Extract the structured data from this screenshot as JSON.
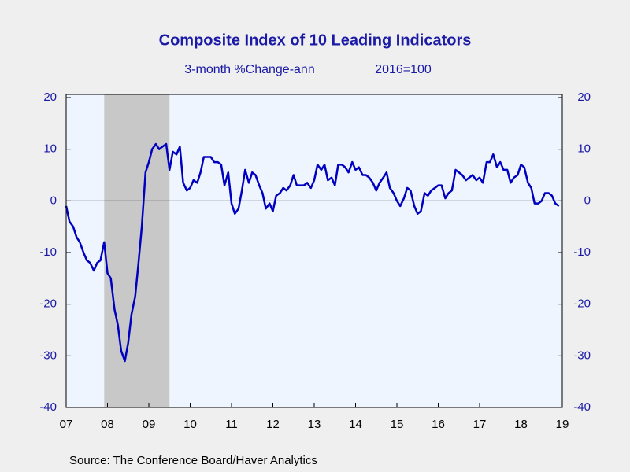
{
  "chart_data": {
    "type": "line",
    "title": "Composite Index of 10 Leading Indicators",
    "subtitle": [
      "3-month %Change-ann",
      "2016=100"
    ],
    "source": "Source:  The Conference Board/Haver Analytics",
    "x": [
      2007,
      2007.08,
      2007.17,
      2007.25,
      2007.33,
      2007.42,
      2007.5,
      2007.58,
      2007.67,
      2007.75,
      2007.83,
      2007.92,
      2008,
      2008.08,
      2008.17,
      2008.25,
      2008.33,
      2008.42,
      2008.5,
      2008.58,
      2008.67,
      2008.75,
      2008.83,
      2008.92,
      2009,
      2009.08,
      2009.17,
      2009.25,
      2009.33,
      2009.42,
      2009.5,
      2009.58,
      2009.67,
      2009.75,
      2009.83,
      2009.92,
      2010,
      2010.08,
      2010.17,
      2010.25,
      2010.33,
      2010.42,
      2010.5,
      2010.58,
      2010.67,
      2010.75,
      2010.83,
      2010.92,
      2011,
      2011.08,
      2011.17,
      2011.25,
      2011.33,
      2011.42,
      2011.5,
      2011.58,
      2011.67,
      2011.75,
      2011.83,
      2011.92,
      2012,
      2012.08,
      2012.17,
      2012.25,
      2012.33,
      2012.42,
      2012.5,
      2012.58,
      2012.67,
      2012.75,
      2012.83,
      2012.92,
      2013,
      2013.08,
      2013.17,
      2013.25,
      2013.33,
      2013.42,
      2013.5,
      2013.58,
      2013.67,
      2013.75,
      2013.83,
      2013.92,
      2014,
      2014.08,
      2014.17,
      2014.25,
      2014.33,
      2014.42,
      2014.5,
      2014.58,
      2014.67,
      2014.75,
      2014.83,
      2014.92,
      2015,
      2015.08,
      2015.17,
      2015.25,
      2015.33,
      2015.42,
      2015.5,
      2015.58,
      2015.67,
      2015.75,
      2015.83,
      2015.92,
      2016,
      2016.08,
      2016.17,
      2016.25,
      2016.33,
      2016.42,
      2016.5,
      2016.58,
      2016.67,
      2016.75,
      2016.83,
      2016.92,
      2017,
      2017.08,
      2017.17,
      2017.25,
      2017.33,
      2017.42,
      2017.5,
      2017.58,
      2017.67,
      2017.75,
      2017.83,
      2017.92,
      2018,
      2018.08,
      2018.17,
      2018.25,
      2018.33,
      2018.42,
      2018.5,
      2018.58,
      2018.67,
      2018.75,
      2018.83,
      2018.92
    ],
    "series": [
      {
        "color": "#0000c0",
        "values": [
          -1,
          -4,
          -5,
          -7,
          -8,
          -10,
          -11.5,
          -12,
          -13.5,
          -12,
          -11.5,
          -8,
          -14,
          -15,
          -21,
          -24,
          -29,
          -31,
          -27.5,
          -22,
          -18.5,
          -12,
          -5,
          5.5,
          7.5,
          10,
          11,
          10,
          10.5,
          11,
          6,
          9.5,
          9,
          10.5,
          3.5,
          2,
          2.5,
          4,
          3.5,
          5.5,
          8.5,
          8.5,
          8.5,
          7.5,
          7.5,
          7,
          3,
          5.5,
          -0.5,
          -2.5,
          -1.5,
          2,
          6,
          3.5,
          5.5,
          5,
          3,
          1.5,
          -1.5,
          -0.5,
          -2,
          1,
          1.5,
          2.5,
          2,
          3,
          5,
          3,
          3,
          3,
          3.5,
          2.5,
          4,
          7,
          6,
          7,
          4,
          4.5,
          3,
          7,
          7,
          6.5,
          5.5,
          7.5,
          6,
          6.5,
          5,
          5,
          4.5,
          3.5,
          2,
          3.5,
          4.5,
          5.5,
          2.5,
          1.5,
          0,
          -1,
          0.5,
          2.5,
          2,
          -1,
          -2.5,
          -2,
          1.5,
          1,
          2,
          2.5,
          3,
          3,
          0.5,
          1.5,
          2,
          6,
          5.5,
          5,
          4,
          4.5,
          5,
          4,
          4.5,
          3.5,
          7.5,
          7.5,
          9,
          6.5,
          7.5,
          6,
          6,
          3.5,
          4.5,
          5,
          7,
          6.5,
          3.5,
          2.5,
          -0.5,
          -0.5,
          0,
          1.5,
          1.5,
          1,
          -0.5,
          -1
        ]
      }
    ],
    "shade": [
      2007.92,
      2009.5
    ],
    "shade_color": "#c8c8c8",
    "xlim": [
      2007,
      2019
    ],
    "xticks": [
      {
        "value": 2007,
        "label": "07"
      },
      {
        "value": 2008,
        "label": "08"
      },
      {
        "value": 2009,
        "label": "09"
      },
      {
        "value": 2010,
        "label": "10"
      },
      {
        "value": 2011,
        "label": "11"
      },
      {
        "value": 2012,
        "label": "12"
      },
      {
        "value": 2013,
        "label": "13"
      },
      {
        "value": 2014,
        "label": "14"
      },
      {
        "value": 2015,
        "label": "15"
      },
      {
        "value": 2016,
        "label": "16"
      },
      {
        "value": 2017,
        "label": "17"
      },
      {
        "value": 2018,
        "label": "18"
      },
      {
        "value": 2019,
        "label": "19"
      }
    ],
    "ylim": [
      -40,
      20
    ],
    "yticks": [
      20,
      10,
      0,
      -10,
      -20,
      -30,
      -40
    ],
    "y2lim": [
      -40,
      20
    ],
    "y2ticks": [
      20,
      10,
      0,
      -10,
      -20,
      -30,
      -40
    ],
    "zero_line": true
  }
}
